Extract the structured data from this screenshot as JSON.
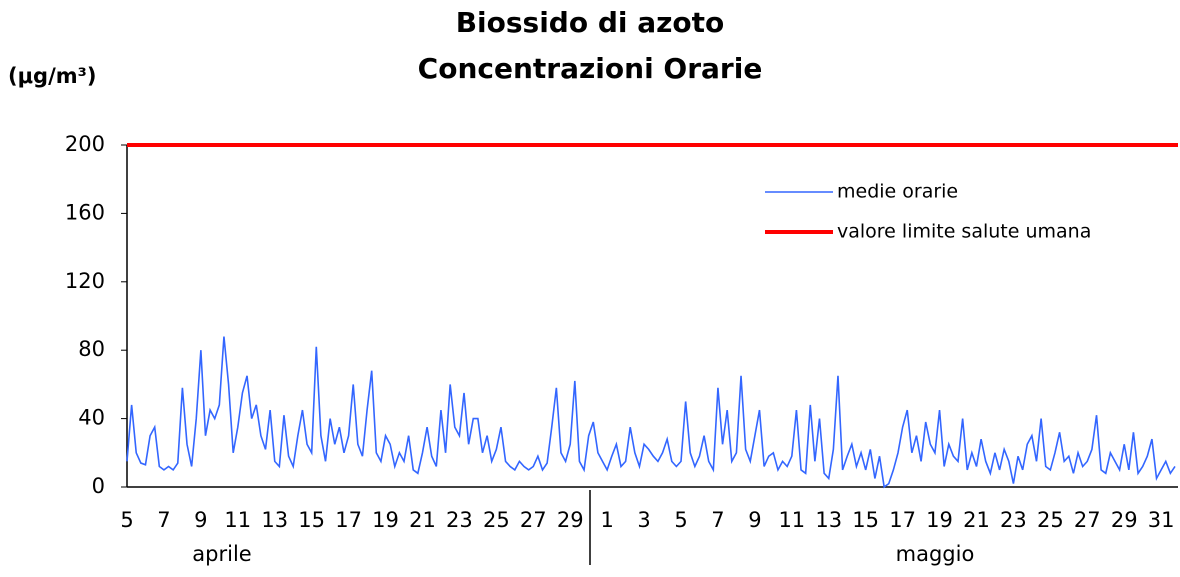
{
  "chart_data": {
    "type": "line",
    "title": "Biossido di azoto",
    "subtitle": "Concentrazioni Orarie",
    "y_label": "(μg/m³)",
    "months": [
      "aprile",
      "maggio"
    ],
    "ylim": [
      0,
      200
    ],
    "yticks": [
      0,
      40,
      80,
      120,
      160,
      200
    ],
    "xlim": [
      0,
      227
    ],
    "xticks": [
      {
        "value": 0,
        "label": "5"
      },
      {
        "value": 8,
        "label": "7"
      },
      {
        "value": 16,
        "label": "9"
      },
      {
        "value": 24,
        "label": "11"
      },
      {
        "value": 32,
        "label": "13"
      },
      {
        "value": 40,
        "label": "15"
      },
      {
        "value": 48,
        "label": "17"
      },
      {
        "value": 56,
        "label": "19"
      },
      {
        "value": 64,
        "label": "21"
      },
      {
        "value": 72,
        "label": "23"
      },
      {
        "value": 80,
        "label": "25"
      },
      {
        "value": 88,
        "label": "27"
      },
      {
        "value": 96,
        "label": "29"
      },
      {
        "value": 104,
        "label": "1"
      },
      {
        "value": 112,
        "label": "3"
      },
      {
        "value": 120,
        "label": "5"
      },
      {
        "value": 128,
        "label": "7"
      },
      {
        "value": 136,
        "label": "9"
      },
      {
        "value": 144,
        "label": "11"
      },
      {
        "value": 152,
        "label": "13"
      },
      {
        "value": 160,
        "label": "15"
      },
      {
        "value": 168,
        "label": "17"
      },
      {
        "value": 176,
        "label": "19"
      },
      {
        "value": 184,
        "label": "21"
      },
      {
        "value": 192,
        "label": "23"
      },
      {
        "value": 200,
        "label": "25"
      },
      {
        "value": 208,
        "label": "27"
      },
      {
        "value": 216,
        "label": "29"
      },
      {
        "value": 224,
        "label": "31"
      }
    ],
    "legend": "upper right",
    "series": [
      {
        "name": "medie orarie",
        "color": "#3366ff",
        "values": [
          15,
          48,
          20,
          14,
          13,
          30,
          35,
          12,
          10,
          12,
          10,
          14,
          58,
          25,
          12,
          40,
          80,
          30,
          45,
          40,
          48,
          88,
          60,
          20,
          35,
          55,
          65,
          40,
          48,
          30,
          22,
          45,
          15,
          12,
          42,
          18,
          12,
          30,
          45,
          25,
          20,
          82,
          30,
          15,
          40,
          25,
          35,
          20,
          30,
          60,
          25,
          18,
          45,
          68,
          20,
          15,
          30,
          25,
          12,
          20,
          15,
          30,
          10,
          8,
          20,
          35,
          18,
          12,
          45,
          20,
          60,
          35,
          30,
          55,
          25,
          40,
          40,
          20,
          30,
          15,
          22,
          35,
          15,
          12,
          10,
          15,
          12,
          10,
          12,
          18,
          10,
          14,
          35,
          58,
          20,
          15,
          25,
          62,
          15,
          10,
          30,
          38,
          20,
          15,
          10,
          18,
          25,
          12,
          15,
          35,
          20,
          12,
          25,
          22,
          18,
          15,
          20,
          28,
          15,
          12,
          15,
          50,
          20,
          12,
          18,
          30,
          15,
          10,
          58,
          25,
          45,
          15,
          20,
          65,
          22,
          15,
          30,
          45,
          12,
          18,
          20,
          10,
          15,
          12,
          18,
          45,
          10,
          8,
          48,
          15,
          40,
          8,
          5,
          22,
          65,
          10,
          18,
          25,
          12,
          20,
          10,
          22,
          5,
          18,
          0,
          2,
          10,
          20,
          35,
          45,
          20,
          30,
          15,
          38,
          25,
          20,
          45,
          12,
          25,
          18,
          15,
          40,
          10,
          20,
          12,
          28,
          15,
          8,
          20,
          10,
          22,
          15,
          2,
          18,
          10,
          25,
          30,
          15,
          40,
          12,
          10,
          20,
          32,
          15,
          18,
          8,
          20,
          12,
          15,
          22,
          42,
          10,
          8,
          20,
          15,
          10,
          25,
          10,
          32,
          8,
          12,
          18,
          28,
          5,
          10,
          15,
          8,
          12
        ]
      }
    ],
    "limit": {
      "name": "valore limite salute umana",
      "value": 200,
      "color": "#ff0000"
    }
  }
}
